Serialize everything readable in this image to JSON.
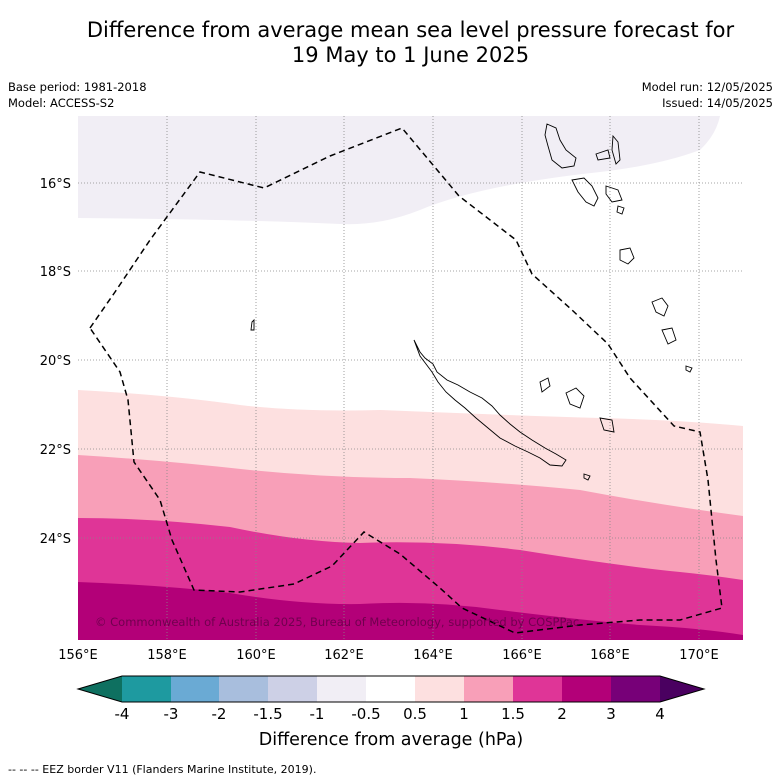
{
  "header": {
    "title_line1": "Difference from average mean sea level pressure forecast for",
    "title_line2": "19 May to 1 June 2025",
    "base_period": "Base period: 1981-2018",
    "model": "Model: ACCESS-S2",
    "model_run": "Model run: 12/05/2025",
    "issued": "Issued: 14/05/2025"
  },
  "map": {
    "lat_labels": [
      "16°S",
      "18°S",
      "20°S",
      "22°S",
      "24°S"
    ],
    "lon_labels": [
      "156°E",
      "158°E",
      "160°E",
      "162°E",
      "164°E",
      "166°E",
      "168°E",
      "170°E"
    ],
    "copyright": "© Commonwealth of Australia 2025, Bureau of Meteorology, supported by COSPPac"
  },
  "colorbar": {
    "ticks": [
      "-4",
      "-3",
      "-2",
      "-1.5",
      "-1",
      "-0.5",
      "0.5",
      "1",
      "1.5",
      "2",
      "3",
      "4"
    ],
    "colors": [
      "#0e7060",
      "#1e9aa0",
      "#6aaad4",
      "#a8bedd",
      "#cdd0e6",
      "#f1eef5",
      "#ffffff",
      "#fde0e0",
      "#f89fb8",
      "#df3597",
      "#b30078",
      "#770078",
      "#4a0060"
    ],
    "label": "Difference from average (hPa)"
  },
  "footer": {
    "text": "--  --  -- EEZ border V11 (Flanders Marine Institute, 2019)."
  }
}
